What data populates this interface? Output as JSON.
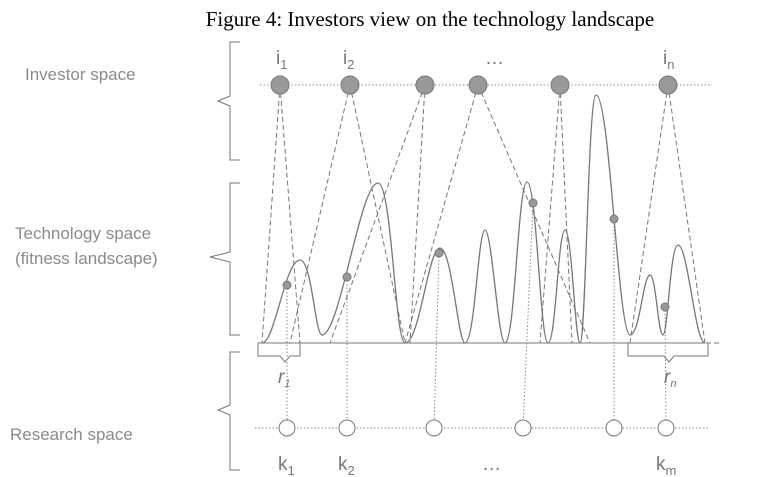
{
  "header": {
    "title": "Figure 4: Investors view on the technology landscape"
  },
  "spaces": {
    "investor": "Investor space",
    "technology": [
      "Technology space",
      "(fitness landscape)"
    ],
    "research": "Research space"
  },
  "investors": [
    {
      "base": "i",
      "sub": "1"
    },
    {
      "base": "i",
      "sub": "2"
    },
    {
      "base": "…"
    },
    {
      "base": "i",
      "sub": "n"
    }
  ],
  "research": [
    {
      "base": "k",
      "sub": "1"
    },
    {
      "base": "k",
      "sub": "2"
    },
    {
      "base": "…"
    },
    {
      "base": "k",
      "sub": "m"
    }
  ],
  "ranges": [
    {
      "base": "r",
      "sub": "1"
    },
    {
      "base": "r",
      "sub": "n"
    }
  ]
}
